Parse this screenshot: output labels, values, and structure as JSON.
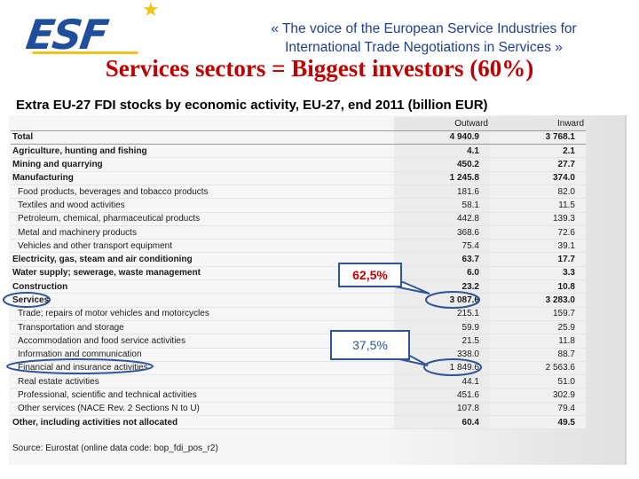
{
  "header": {
    "logo_text": "ESF",
    "tagline_line1": "« The voice of the European Service Industries for",
    "tagline_line2": "International Trade Negotiations in Services »"
  },
  "headline": "Services sectors = Biggest investors (60%)",
  "table": {
    "title": "Extra EU-27 FDI stocks by economic activity, EU-27, end 2011 (billion EUR)",
    "columns": {
      "outward": "Outward",
      "inward": "Inward"
    },
    "rows": [
      {
        "label": "Total",
        "outward": "4 940.9",
        "inward": "3 768.1"
      },
      {
        "label": "Agriculture, hunting and fishing",
        "outward": "4.1",
        "inward": "2.1"
      },
      {
        "label": "Mining and quarrying",
        "outward": "450.2",
        "inward": "27.7"
      },
      {
        "label": "Manufacturing",
        "outward": "1 245.8",
        "inward": "374.0"
      },
      {
        "label": "Food products, beverages and tobacco products",
        "outward": "181.6",
        "inward": "82.0"
      },
      {
        "label": "Textiles and wood activities",
        "outward": "58.1",
        "inward": "11.5"
      },
      {
        "label": "Petroleum, chemical, pharmaceutical products",
        "outward": "442.8",
        "inward": "139.3"
      },
      {
        "label": "Metal and machinery products",
        "outward": "368.6",
        "inward": "72.6"
      },
      {
        "label": "Vehicles and other transport equipment",
        "outward": "75.4",
        "inward": "39.1"
      },
      {
        "label": "Electricity, gas, steam and air conditioning",
        "outward": "63.7",
        "inward": "17.7"
      },
      {
        "label": "Water supply; sewerage, waste management",
        "outward": "6.0",
        "inward": "3.3"
      },
      {
        "label": "Construction",
        "outward": "23.2",
        "inward": "10.8"
      },
      {
        "label": "Services",
        "outward": "3 087.6",
        "inward": "3 283.0"
      },
      {
        "label": "Trade; repairs of motor vehicles and motorcycles",
        "outward": "215.1",
        "inward": "159.7"
      },
      {
        "label": "Transportation and storage",
        "outward": "59.9",
        "inward": "25.9"
      },
      {
        "label": "Accommodation and food service activities",
        "outward": "21.5",
        "inward": "11.8"
      },
      {
        "label": "Information and communication",
        "outward": "338.0",
        "inward": "88.7"
      },
      {
        "label": "Financial and insurance activities",
        "outward": "1 849.6",
        "inward": "2 563.6"
      },
      {
        "label": "Real estate activities",
        "outward": "44.1",
        "inward": "51.0"
      },
      {
        "label": "Professional, scientific and technical activities",
        "outward": "451.6",
        "inward": "302.9"
      },
      {
        "label": "Other services (NACE Rev. 2 Sections N to U)",
        "outward": "107.8",
        "inward": "79.4"
      },
      {
        "label": "Other, including activities not allocated",
        "outward": "60.4",
        "inward": "49.5"
      }
    ],
    "source": "Source: Eurostat (online data code: bop_fdi_pos_r2)"
  },
  "callouts": {
    "services_share": "62,5%",
    "financial_share": "37,5%"
  },
  "colors": {
    "brand_blue": "#1f4e9c",
    "headline_red": "#c00000",
    "accent_yellow": "#f0c419",
    "callout_blue": "#2e5597"
  }
}
